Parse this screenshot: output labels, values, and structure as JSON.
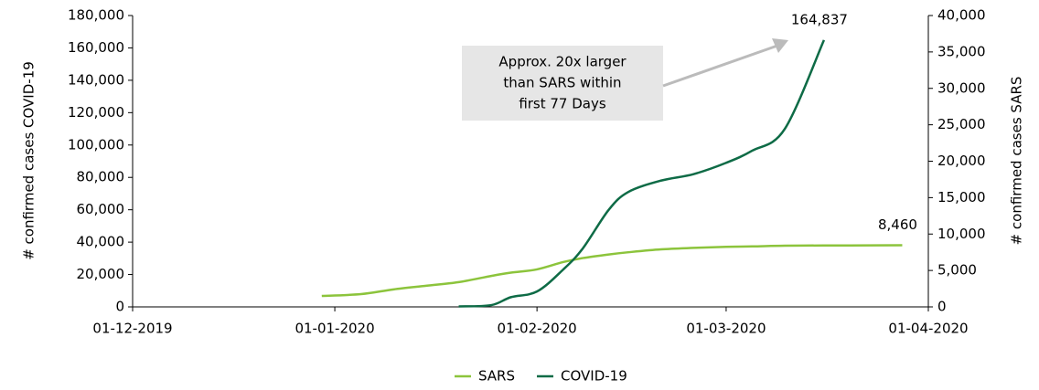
{
  "chart_data": {
    "type": "line",
    "y_label": "# confirmed cases COVID-19",
    "y2_label": "# confirmed cases SARS",
    "annotation": [
      "Approx. 20x larger",
      "than SARS within",
      "first 77 Days"
    ],
    "x": [
      "30-12-2019",
      "05-01-2020",
      "10-01-2020",
      "15-01-2020",
      "20-01-2020",
      "25-01-2020",
      "28-01-2020",
      "01-02-2020",
      "05-02-2020",
      "08-02-2020",
      "12-02-2020",
      "15-02-2020",
      "20-02-2020",
      "25-02-2020",
      "01-03-2020",
      "05-03-2020",
      "10-03-2020",
      "16-03-2020",
      "20-03-2020",
      "28-03-2020"
    ],
    "series": [
      {
        "name": "SARS",
        "color": "#8cc43c",
        "axis": "y2",
        "values": [
          1500,
          1750,
          2400,
          2900,
          3400,
          4250,
          4700,
          5150,
          6150,
          6700,
          7200,
          7500,
          7900,
          8100,
          8250,
          8300,
          8400,
          8430,
          8440,
          8460
        ],
        "value_labels": [
          null,
          null,
          null,
          null,
          null,
          null,
          null,
          null,
          null,
          null,
          null,
          null,
          null,
          null,
          null,
          null,
          null,
          null,
          null,
          "8,460"
        ]
      },
      {
        "name": "COVID-19",
        "color": "#0e6b46",
        "values": [
          null,
          null,
          null,
          null,
          300,
          1100,
          6000,
          9500,
          23000,
          36000,
          60000,
          71000,
          78000,
          82000,
          89000,
          96500,
          110000,
          164837,
          null,
          null
        ],
        "value_labels": [
          null,
          null,
          null,
          null,
          null,
          null,
          null,
          null,
          null,
          null,
          null,
          null,
          null,
          null,
          null,
          null,
          null,
          "164,837",
          null,
          null
        ]
      }
    ],
    "xlim": [
      "01-12-2019",
      "01-04-2020"
    ],
    "xticks": [
      "01-12-2019",
      "01-01-2020",
      "01-02-2020",
      "01-03-2020",
      "01-04-2020"
    ],
    "ylim": [
      0,
      180000
    ],
    "yticks": [
      0,
      {
        "value": 20000,
        "label": "20,000"
      },
      {
        "value": 40000,
        "label": "40,000"
      },
      {
        "value": 60000,
        "label": "60,000"
      },
      {
        "value": 80000,
        "label": "80,000"
      },
      {
        "value": 100000,
        "label": "100,000"
      },
      {
        "value": 120000,
        "label": "120,000"
      },
      {
        "value": 140000,
        "label": "140,000"
      },
      {
        "value": 160000,
        "label": "160,000"
      },
      {
        "value": 180000,
        "label": "180,000"
      }
    ],
    "y2lim": [
      0,
      40000
    ],
    "y2ticks": [
      0,
      {
        "value": 5000,
        "label": "5,000"
      },
      {
        "value": 10000,
        "label": "10,000"
      },
      {
        "value": 15000,
        "label": "15,000"
      },
      {
        "value": 20000,
        "label": "20,000"
      },
      {
        "value": 25000,
        "label": "25,000"
      },
      {
        "value": 30000,
        "label": "30,000"
      },
      {
        "value": 35000,
        "label": "35,000"
      },
      {
        "value": 40000,
        "label": "40,000"
      }
    ],
    "grid": false,
    "legend": "bottom"
  }
}
